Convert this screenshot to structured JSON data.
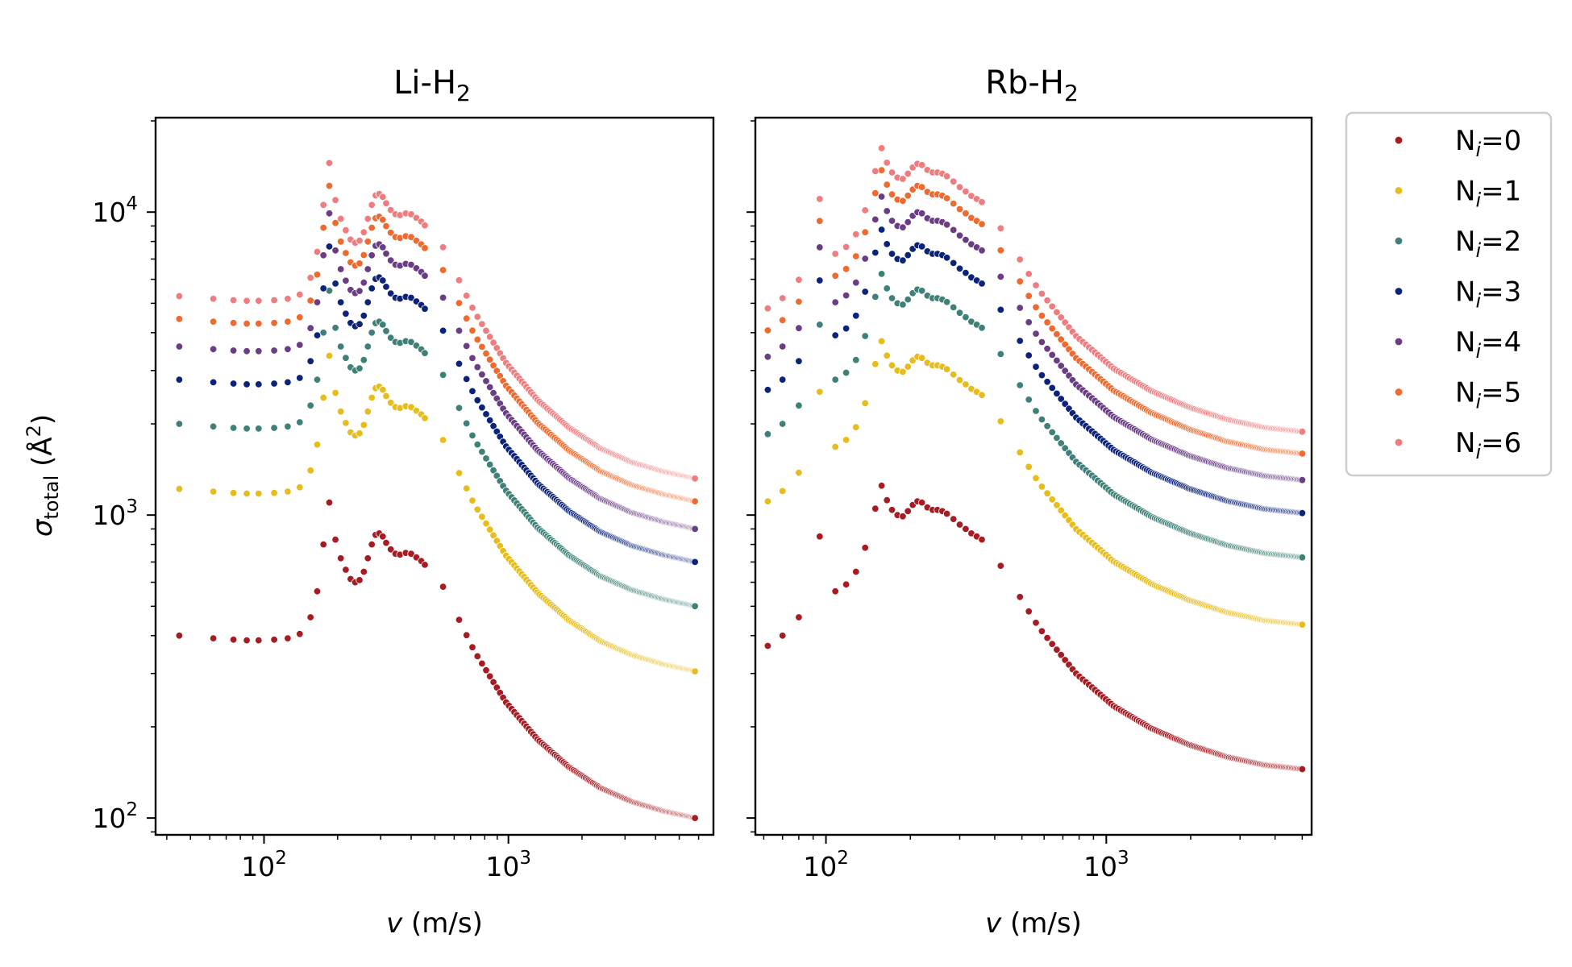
{
  "chart_data": [
    {
      "type": "scatter",
      "title": "Li-H",
      "title_sub": "2",
      "xlabel_var": "v",
      "xlabel_unit": " (m/s)",
      "ylabel_sym": "σ",
      "ylabel_sub": "total",
      "ylabel_unit": " (Å",
      "ylabel_sup": "2",
      "ylabel_end": ")",
      "xscale": "log",
      "yscale": "log",
      "xlim": [
        36,
        6900
      ],
      "ylim": [
        88,
        20500
      ],
      "xticks": [
        {
          "base": "10",
          "exp": "2",
          "value": 100
        },
        {
          "base": "10",
          "exp": "3",
          "value": 1000
        }
      ],
      "yticks": [
        {
          "base": "10",
          "exp": "2",
          "value": 100
        },
        {
          "base": "10",
          "exp": "3",
          "value": 1000
        },
        {
          "base": "10",
          "exp": "4",
          "value": 10000
        }
      ],
      "curve": {
        "v_plateau": [
          45,
          62,
          75,
          85,
          95,
          110,
          125,
          140
        ],
        "plateau": [
          400,
          392,
          388,
          386,
          386,
          388,
          392,
          405
        ],
        "v_spike": [
          155,
          165,
          175
        ],
        "spike": [
          460,
          560,
          800
        ],
        "v_res": [
          185,
          196,
          206,
          216,
          226,
          236,
          246,
          256,
          266,
          276,
          286,
          296,
          306,
          316,
          330,
          345,
          360,
          380,
          400,
          420,
          440,
          455
        ],
        "res": [
          1100,
          830,
          720,
          660,
          615,
          600,
          610,
          650,
          720,
          800,
          860,
          870,
          850,
          810,
          770,
          745,
          740,
          750,
          745,
          725,
          705,
          685
        ],
        "v_tail_start": 540,
        "v_tail_end": 5800,
        "tail_start": 580,
        "tail_end": 100,
        "tail_shape": [
          0,
          0.28,
          0.5,
          0.66,
          0.78,
          0.87,
          0.93,
          0.97,
          1.0
        ]
      },
      "series": [
        {
          "name": "N",
          "index": "i",
          "value": "=0",
          "scale": 1.0
        },
        {
          "name": "N",
          "index": "i",
          "value": "=1",
          "scale": 3.05
        },
        {
          "name": "N",
          "index": "i",
          "value": "=2",
          "scale": 5.0
        },
        {
          "name": "N",
          "index": "i",
          "value": "=3",
          "scale": 7.0
        },
        {
          "name": "N",
          "index": "i",
          "value": "=4",
          "scale": 9.0
        },
        {
          "name": "N",
          "index": "i",
          "value": "=5",
          "scale": 11.1
        },
        {
          "name": "N",
          "index": "i",
          "value": "=6",
          "scale": 13.2
        }
      ]
    },
    {
      "type": "scatter",
      "title": "Rb-H",
      "title_sub": "2",
      "xlabel_var": "v",
      "xlabel_unit": " (m/s)",
      "xscale": "log",
      "yscale": "log",
      "xlim": [
        56,
        5400
      ],
      "ylim": [
        88,
        20500
      ],
      "xticks": [
        {
          "base": "10",
          "exp": "2",
          "value": 100
        },
        {
          "base": "10",
          "exp": "3",
          "value": 1000
        }
      ],
      "yticks": [],
      "curve": {
        "v_plateau": [
          62,
          70,
          80,
          95,
          108,
          118,
          128
        ],
        "plateau": [
          370,
          400,
          460,
          850,
          560,
          590,
          650
        ],
        "v_spike": [
          138,
          150
        ],
        "spike": [
          780,
          1050
        ],
        "v_res": [
          158,
          165,
          172,
          180,
          188,
          196,
          204,
          212,
          220,
          230,
          240,
          250,
          260,
          270,
          285,
          300,
          315,
          330,
          345,
          360
        ],
        "res": [
          1250,
          1120,
          1040,
          1000,
          990,
          1030,
          1080,
          1110,
          1100,
          1060,
          1040,
          1040,
          1030,
          1010,
          970,
          930,
          900,
          870,
          850,
          830
        ],
        "v_tail_start": 420,
        "v_tail_end": 5000,
        "tail_start": 680,
        "tail_end": 145,
        "tail_shape": [
          0,
          0.3,
          0.53,
          0.69,
          0.8,
          0.88,
          0.94,
          0.98,
          1.0
        ]
      },
      "series": [
        {
          "name": "N",
          "index": "i",
          "value": "=0",
          "scale": 1.0
        },
        {
          "name": "N",
          "index": "i",
          "value": "=1",
          "scale": 3.0
        },
        {
          "name": "N",
          "index": "i",
          "value": "=2",
          "scale": 5.0
        },
        {
          "name": "N",
          "index": "i",
          "value": "=3",
          "scale": 7.0
        },
        {
          "name": "N",
          "index": "i",
          "value": "=4",
          "scale": 9.0
        },
        {
          "name": "N",
          "index": "i",
          "value": "=5",
          "scale": 11.0
        },
        {
          "name": "N",
          "index": "i",
          "value": "=6",
          "scale": 13.0
        }
      ]
    }
  ],
  "legend": {
    "entries": [
      {
        "name": "N",
        "index": "i",
        "value": "=0"
      },
      {
        "name": "N",
        "index": "i",
        "value": "=1"
      },
      {
        "name": "N",
        "index": "i",
        "value": "=2"
      },
      {
        "name": "N",
        "index": "i",
        "value": "=3"
      },
      {
        "name": "N",
        "index": "i",
        "value": "=4"
      },
      {
        "name": "N",
        "index": "i",
        "value": "=5"
      },
      {
        "name": "N",
        "index": "i",
        "value": "=6"
      }
    ],
    "position": "right"
  },
  "colors": [
    "#a61c22",
    "#e6bd1c",
    "#3f8178",
    "#0b237a",
    "#6a3d84",
    "#ef6a2e",
    "#ef7d80"
  ]
}
